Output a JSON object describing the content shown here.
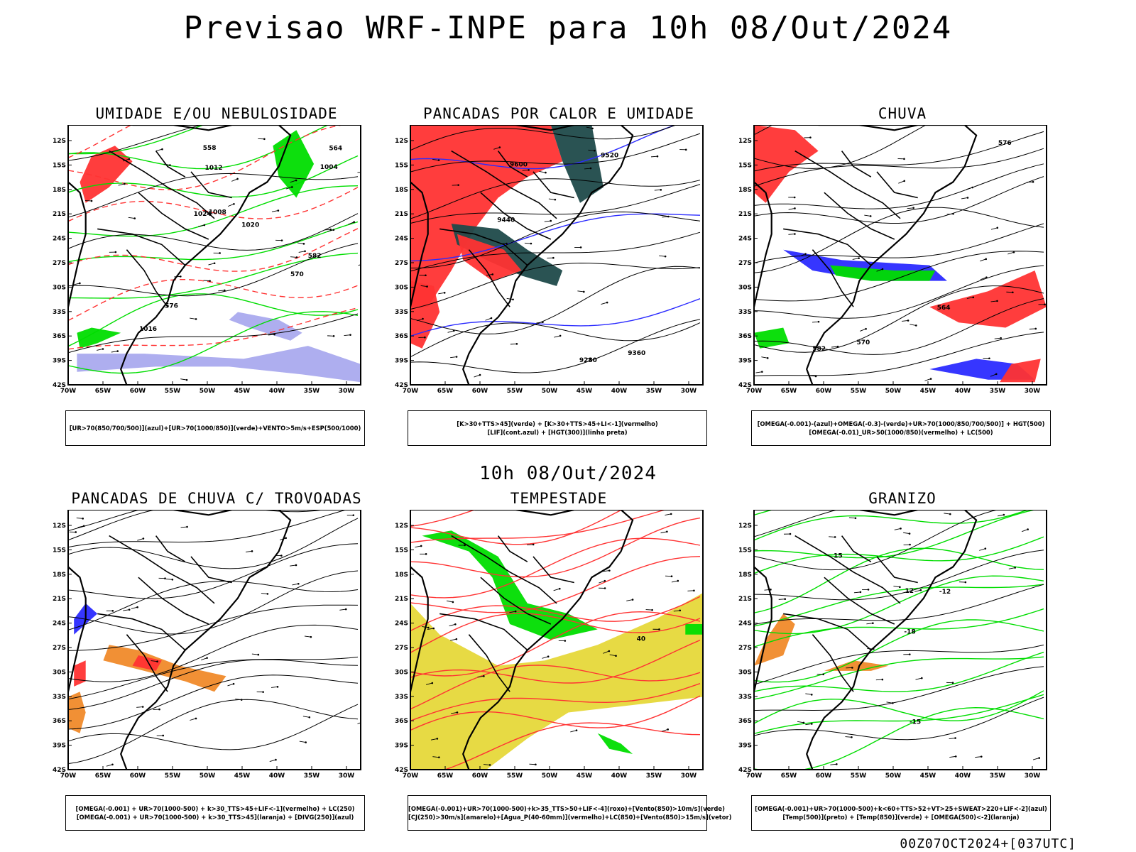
{
  "main_title": "Previsao WRF-INPE  para 10h 08/Out/2024",
  "mid_title": "10h 08/Out/2024",
  "footer": "00Z07OCT2024+[037UTC]",
  "lat_labels": [
    "12S",
    "15S",
    "18S",
    "21S",
    "24S",
    "27S",
    "30S",
    "33S",
    "36S",
    "39S",
    "42S"
  ],
  "lon_labels": [
    "70W",
    "65W",
    "60W",
    "55W",
    "50W",
    "45W",
    "40W",
    "35W",
    "30W"
  ],
  "colors": {
    "blue": "#2b2bff",
    "green": "#00dd00",
    "red": "#ff3333",
    "lavender": "#aaaaee",
    "teal": "#1f4a4a",
    "yellow": "#e6d83a",
    "orange": "#f08a2a",
    "black": "#000000"
  },
  "panels": [
    {
      "title": "UMIDADE E/OU NEBULOSIDADE",
      "caption": [
        "[UR>70(850/700/500)](azul)+[UR>70(1000/850)](verde)+VENTO>5m/s+ESP(500/1000)"
      ],
      "contour_labels": [
        "1008",
        "1012",
        "1016",
        "1004",
        "1020",
        "1024",
        "570",
        "576",
        "564",
        "558",
        "582"
      ],
      "layers": [
        {
          "type": "blob",
          "color": "lavender",
          "pts": [
            [
              3,
              12
            ],
            [
              26,
              12
            ],
            [
              60,
              10
            ],
            [
              82,
              15
            ],
            [
              100,
              8
            ],
            [
              100,
              1
            ],
            [
              80,
              4
            ],
            [
              55,
              7
            ],
            [
              30,
              7
            ],
            [
              3,
              5
            ]
          ]
        },
        {
          "type": "blob",
          "color": "lavender",
          "pts": [
            [
              58,
              28
            ],
            [
              72,
              25
            ],
            [
              80,
              20
            ],
            [
              76,
              17
            ],
            [
              62,
              22
            ],
            [
              55,
              25
            ]
          ]
        },
        {
          "type": "blob",
          "color": "green",
          "pts": [
            [
              4,
              14
            ],
            [
              10,
              16
            ],
            [
              18,
              20
            ],
            [
              8,
              22
            ],
            [
              3,
              20
            ]
          ]
        },
        {
          "type": "blob",
          "color": "green",
          "pts": [
            [
              70,
              92
            ],
            [
              78,
              98
            ],
            [
              84,
              85
            ],
            [
              78,
              72
            ],
            [
              72,
              80
            ]
          ]
        },
        {
          "type": "blob",
          "color": "red",
          "pts": [
            [
              6,
              70
            ],
            [
              14,
              76
            ],
            [
              22,
              86
            ],
            [
              16,
              92
            ],
            [
              8,
              88
            ],
            [
              4,
              78
            ]
          ]
        },
        {
          "type": "lines",
          "color": "green",
          "seed": 11,
          "n": 8
        },
        {
          "type": "lines",
          "color": "red",
          "seed": 3,
          "n": 6
        },
        {
          "type": "lines",
          "color": "black",
          "seed": 7,
          "n": 5
        }
      ]
    },
    {
      "title": "PANCADAS POR CALOR E UMIDADE",
      "caption": [
        "[K>30+TTS>45](verde) + [K>30+TTS>45+LI<-1](vermelho)",
        "[LIF](cont.azul) + [HGT(300)](linha preta)"
      ],
      "contour_labels": [
        "9600",
        "9520",
        "9440",
        "9360",
        "9280"
      ],
      "layers": [
        {
          "type": "blob",
          "color": "red",
          "pts": [
            [
              0,
              100
            ],
            [
              48,
              100
            ],
            [
              52,
              86
            ],
            [
              40,
              80
            ],
            [
              30,
              72
            ],
            [
              22,
              60
            ],
            [
              14,
              44
            ],
            [
              6,
              30
            ],
            [
              0,
              30
            ]
          ]
        },
        {
          "type": "blob",
          "color": "teal",
          "pts": [
            [
              48,
              100
            ],
            [
              62,
              100
            ],
            [
              66,
              76
            ],
            [
              58,
              70
            ],
            [
              52,
              86
            ]
          ]
        },
        {
          "type": "blob",
          "color": "teal",
          "pts": [
            [
              14,
              62
            ],
            [
              30,
              60
            ],
            [
              40,
              52
            ],
            [
              52,
              44
            ],
            [
              50,
              38
            ],
            [
              38,
              42
            ],
            [
              26,
              48
            ],
            [
              16,
              54
            ]
          ]
        },
        {
          "type": "blob",
          "color": "red",
          "pts": [
            [
              16,
              58
            ],
            [
              32,
              52
            ],
            [
              38,
              44
            ],
            [
              28,
              40
            ],
            [
              18,
              48
            ]
          ]
        },
        {
          "type": "blob",
          "color": "red",
          "pts": [
            [
              0,
              40
            ],
            [
              8,
              38
            ],
            [
              10,
              28
            ],
            [
              4,
              14
            ],
            [
              0,
              16
            ]
          ]
        },
        {
          "type": "lines",
          "color": "blue",
          "seed": 5,
          "n": 3
        },
        {
          "type": "lines",
          "color": "black",
          "seed": 9,
          "n": 11
        }
      ]
    },
    {
      "title": "CHUVA",
      "caption": [
        "[OMEGA(-0.001)-(azul)+OMEGA(-0.3)-(verde)+UR>70(1000/850/700/500)] + HGT(500)",
        "[OMEGA(-0.01)_UR>50(1000/850)(vermelho) + LC(500)"
      ],
      "contour_labels": [
        "582",
        "576",
        "570",
        "564"
      ],
      "layers": [
        {
          "type": "blob",
          "color": "red",
          "pts": [
            [
              0,
              100
            ],
            [
              14,
              98
            ],
            [
              22,
              90
            ],
            [
              12,
              82
            ],
            [
              4,
              70
            ],
            [
              0,
              74
            ]
          ]
        },
        {
          "type": "blob",
          "color": "blue",
          "pts": [
            [
              10,
              52
            ],
            [
              30,
              48
            ],
            [
              60,
              46
            ],
            [
              66,
              40
            ],
            [
              40,
              40
            ],
            [
              20,
              44
            ]
          ]
        },
        {
          "type": "blob",
          "color": "green",
          "pts": [
            [
              26,
              46
            ],
            [
              48,
              44
            ],
            [
              62,
              44
            ],
            [
              60,
              40
            ],
            [
              40,
              40
            ],
            [
              28,
              42
            ]
          ]
        },
        {
          "type": "blob",
          "color": "green",
          "pts": [
            [
              0,
              20
            ],
            [
              10,
              22
            ],
            [
              12,
              16
            ],
            [
              2,
              14
            ]
          ]
        },
        {
          "type": "blob",
          "color": "red",
          "pts": [
            [
              60,
              30
            ],
            [
              80,
              36
            ],
            [
              96,
              44
            ],
            [
              100,
              30
            ],
            [
              86,
              22
            ],
            [
              70,
              24
            ]
          ]
        },
        {
          "type": "blob",
          "color": "blue",
          "pts": [
            [
              60,
              6
            ],
            [
              76,
              10
            ],
            [
              90,
              8
            ],
            [
              96,
              2
            ],
            [
              80,
              2
            ]
          ]
        },
        {
          "type": "blob",
          "color": "red",
          "pts": [
            [
              84,
              1
            ],
            [
              96,
              1
            ],
            [
              98,
              10
            ],
            [
              88,
              8
            ]
          ]
        },
        {
          "type": "lines",
          "color": "black",
          "seed": 13,
          "n": 13
        }
      ]
    },
    {
      "title": "PANCADAS DE CHUVA C/ TROVOADAS",
      "caption": [
        "[OMEGA(-0.001) + UR>70(1000-500) + k>30_TTS>45+LIF<-1](vermelho) + LC(250)",
        "[OMEGA(-0.001) + UR>70(1000-500) + k>30_TTS>45](laranja) + [DIVG(250)](azul)"
      ],
      "contour_labels": [],
      "layers": [
        {
          "type": "blob",
          "color": "orange",
          "pts": [
            [
              12,
              42
            ],
            [
              26,
              38
            ],
            [
              40,
              34
            ],
            [
              50,
              30
            ],
            [
              54,
              36
            ],
            [
              38,
              40
            ],
            [
              24,
              46
            ],
            [
              14,
              48
            ]
          ]
        },
        {
          "type": "blob",
          "color": "red",
          "pts": [
            [
              22,
              40
            ],
            [
              30,
              38
            ],
            [
              32,
              42
            ],
            [
              24,
              44
            ]
          ]
        },
        {
          "type": "blob",
          "color": "blue",
          "pts": [
            [
              2,
              52
            ],
            [
              6,
              56
            ],
            [
              10,
              60
            ],
            [
              6,
              64
            ],
            [
              2,
              58
            ]
          ]
        },
        {
          "type": "blob",
          "color": "orange",
          "pts": [
            [
              0,
              16
            ],
            [
              4,
              14
            ],
            [
              6,
              22
            ],
            [
              4,
              30
            ],
            [
              0,
              28
            ]
          ]
        },
        {
          "type": "blob",
          "color": "red",
          "pts": [
            [
              2,
              32
            ],
            [
              6,
              34
            ],
            [
              6,
              42
            ],
            [
              2,
              40
            ]
          ]
        },
        {
          "type": "lines",
          "color": "black",
          "seed": 17,
          "n": 14
        }
      ]
    },
    {
      "title": "TEMPESTADE",
      "caption": [
        "[OMEGA(-0.001)+UR>70(1000-500)+k>35_TTS>50+LIF<-4](roxo)+[Vento(850)>10m/s](verde)",
        "[CJ(250)>30m/s](amarelo)+[Agua_P(40-60mm)](vermelho)+LC(850)+[Vento(850)>15m/s](vetor)"
      ],
      "contour_labels": [
        "40"
      ],
      "layers": [
        {
          "type": "blob",
          "color": "yellow",
          "pts": [
            [
              0,
              0
            ],
            [
              26,
              0
            ],
            [
              40,
              12
            ],
            [
              54,
              22
            ],
            [
              100,
              28
            ],
            [
              100,
              68
            ],
            [
              84,
              58
            ],
            [
              64,
              48
            ],
            [
              46,
              42
            ],
            [
              30,
              40
            ],
            [
              10,
              52
            ],
            [
              0,
              64
            ]
          ]
        },
        {
          "type": "blob",
          "color": "green",
          "pts": [
            [
              4,
              90
            ],
            [
              20,
              84
            ],
            [
              28,
              74
            ],
            [
              34,
              56
            ],
            [
              48,
              50
            ],
            [
              64,
              54
            ],
            [
              54,
              60
            ],
            [
              40,
              64
            ],
            [
              30,
              82
            ],
            [
              14,
              92
            ]
          ]
        },
        {
          "type": "blob",
          "color": "green",
          "pts": [
            [
              94,
              56
            ],
            [
              100,
              56
            ],
            [
              100,
              52
            ],
            [
              94,
              52
            ]
          ]
        },
        {
          "type": "blob",
          "color": "green",
          "pts": [
            [
              64,
              14
            ],
            [
              72,
              10
            ],
            [
              76,
              6
            ],
            [
              68,
              8
            ]
          ]
        },
        {
          "type": "lines",
          "color": "red",
          "seed": 21,
          "n": 14
        }
      ]
    },
    {
      "title": "GRANIZO",
      "caption": [
        "[OMEGA(-0.001)+UR>70(1000-500)+k<60+TTS>52+VT>25+SWEAT>220+LIF<-2](azul)",
        "[Temp(500)](preto) + [Temp(850)](verde) + [OMEGA(500)<-2](laranja)"
      ],
      "contour_labels": [
        "-12",
        "-15",
        "-18",
        "15",
        "12"
      ],
      "layers": [
        {
          "type": "blob",
          "color": "orange",
          "pts": [
            [
              0,
              40
            ],
            [
              10,
              44
            ],
            [
              14,
              56
            ],
            [
              10,
              60
            ],
            [
              4,
              50
            ]
          ]
        },
        {
          "type": "blob",
          "color": "orange",
          "pts": [
            [
              24,
              38
            ],
            [
              40,
              38
            ],
            [
              46,
              40
            ],
            [
              34,
              42
            ]
          ]
        },
        {
          "type": "lines",
          "color": "green",
          "seed": 27,
          "n": 14
        },
        {
          "type": "lines",
          "color": "black",
          "seed": 31,
          "n": 7
        }
      ]
    }
  ]
}
